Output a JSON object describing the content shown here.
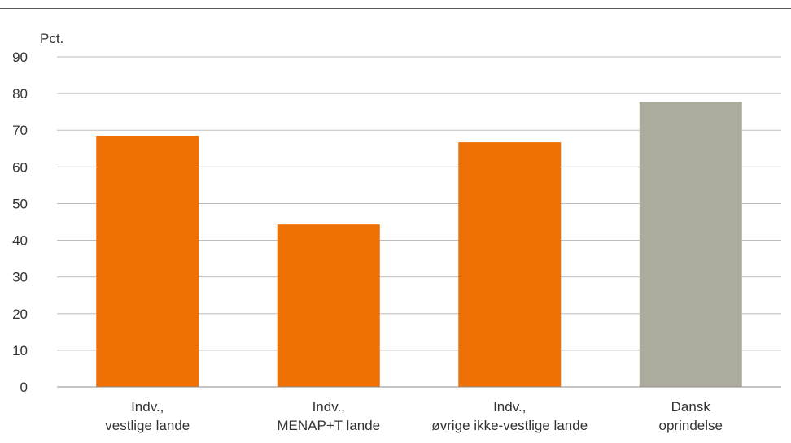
{
  "chart_data": {
    "type": "bar",
    "title": "",
    "ylabel": "Pct.",
    "xlabel": "",
    "ylim": [
      0,
      90
    ],
    "yticks": [
      "0",
      "10",
      "20",
      "30",
      "40",
      "50",
      "60",
      "70",
      "80",
      "90"
    ],
    "categories": [
      [
        "Indv.,",
        "vestlige lande"
      ],
      [
        "Indv.,",
        "MENAP+T lande"
      ],
      [
        "Indv.,",
        "øvrige ikke-vestlige lande"
      ],
      [
        "Dansk",
        "oprindelse"
      ]
    ],
    "values": [
      68.5,
      44.3,
      66.7,
      77.7
    ],
    "colors": [
      "#ed7104",
      "#ed7104",
      "#ed7104",
      "#acab9d"
    ],
    "grid": true
  }
}
